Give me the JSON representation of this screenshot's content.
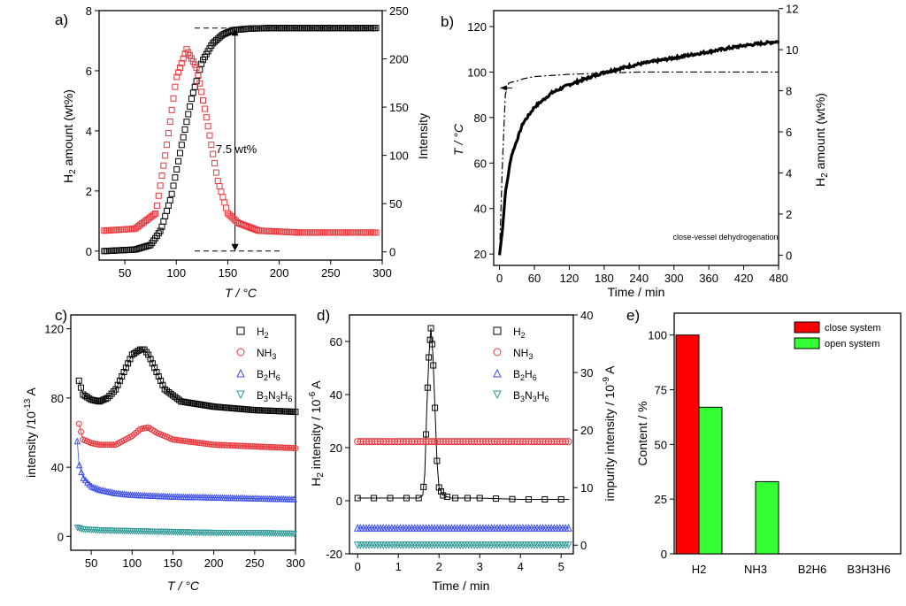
{
  "colors": {
    "black": "#000000",
    "red": "#e8383d",
    "blue": "#3b4ee8",
    "teal": "#2e9a97",
    "bar_red": "#ff0000",
    "bar_green": "#33ff33"
  },
  "chart_data": [
    {
      "panel": "a)",
      "type": "scatter",
      "xlabel": "T / °C",
      "ylabel_left": "H2 amount (wt%)",
      "ylabel_right": "Intensity",
      "xlim": [
        25,
        300
      ],
      "ylim_left": [
        -0.3,
        8
      ],
      "ylim_right": [
        -8.5,
        250
      ],
      "xticks": [
        "50",
        "100",
        "150",
        "200",
        "250",
        "300"
      ],
      "yticks_left": [
        "0",
        "2",
        "4",
        "6",
        "8"
      ],
      "yticks_right": [
        "0",
        "50",
        "100",
        "150",
        "200",
        "250"
      ],
      "annotation": "7.5 wt%",
      "series": [
        {
          "name": "H2 amount",
          "axis": "left",
          "color": "#000000",
          "marker": "square",
          "x": [
            30,
            60,
            75,
            85,
            95,
            105,
            115,
            125,
            135,
            145,
            155,
            170,
            190,
            220,
            260,
            295
          ],
          "y": [
            0,
            0.05,
            0.2,
            0.7,
            1.8,
            3.5,
            5.1,
            6.3,
            6.9,
            7.2,
            7.35,
            7.4,
            7.42,
            7.42,
            7.42,
            7.42
          ]
        },
        {
          "name": "Intensity",
          "axis": "right",
          "color": "#e8383d",
          "marker": "square",
          "x": [
            30,
            60,
            80,
            90,
            100,
            110,
            120,
            130,
            140,
            150,
            160,
            180,
            220,
            260,
            295
          ],
          "y": [
            22,
            24,
            40,
            105,
            180,
            210,
            190,
            135,
            75,
            40,
            30,
            22,
            20,
            20,
            20
          ]
        }
      ]
    },
    {
      "panel": "b)",
      "type": "line",
      "title": "close-vessel dehydrogenation",
      "xlabel": "Time / min",
      "ylabel_left": "T / °C",
      "ylabel_right": "H2 amount (wt%)",
      "xlim": [
        -10,
        480
      ],
      "ylim_left": [
        15,
        127
      ],
      "ylim_right": [
        -0.5,
        11.9
      ],
      "xticks": [
        "0",
        "60",
        "120",
        "180",
        "240",
        "300",
        "360",
        "420",
        "480"
      ],
      "yticks_left": [
        "20",
        "40",
        "60",
        "80",
        "100",
        "120"
      ],
      "yticks_right": [
        "0",
        "2",
        "4",
        "6",
        "8",
        "10",
        "12"
      ],
      "series": [
        {
          "name": "T",
          "axis": "left",
          "color": "#000000",
          "style": "dash-dot",
          "x": [
            0,
            5,
            10,
            15,
            20,
            30,
            40,
            60,
            120,
            240,
            480
          ],
          "y": [
            20,
            60,
            90,
            95,
            95.5,
            96,
            97,
            98,
            99,
            100,
            100
          ]
        },
        {
          "name": "H2 amount",
          "axis": "right",
          "color": "#000000",
          "style": "thick",
          "x": [
            0,
            5,
            10,
            20,
            40,
            60,
            90,
            120,
            180,
            240,
            300,
            360,
            420,
            480
          ],
          "y": [
            0,
            1.2,
            3,
            4.8,
            6.4,
            7.2,
            7.9,
            8.3,
            8.9,
            9.3,
            9.6,
            9.9,
            10.2,
            10.4
          ]
        }
      ]
    },
    {
      "panel": "c)",
      "type": "scatter",
      "xlabel": "T / °C",
      "ylabel": "intensity /10-13 A",
      "xlim": [
        25,
        300
      ],
      "ylim": [
        -8,
        128
      ],
      "xticks": [
        "50",
        "100",
        "150",
        "200",
        "250",
        "300"
      ],
      "yticks": [
        "0",
        "40",
        "80",
        "120"
      ],
      "legend": [
        "H2",
        "NH3",
        "B2H6",
        "B3N3H6"
      ],
      "series": [
        {
          "name": "H2",
          "color": "#000000",
          "marker": "square",
          "x": [
            35,
            40,
            50,
            60,
            70,
            80,
            90,
            100,
            110,
            115,
            120,
            130,
            140,
            160,
            200,
            250,
            300
          ],
          "y": [
            90,
            82,
            79,
            78,
            80,
            85,
            95,
            105,
            108,
            108,
            105,
            95,
            85,
            78,
            75,
            73,
            72
          ]
        },
        {
          "name": "NH3",
          "color": "#e8383d",
          "marker": "circle",
          "x": [
            35,
            40,
            50,
            60,
            80,
            100,
            110,
            120,
            130,
            150,
            200,
            250,
            300
          ],
          "y": [
            65,
            56,
            54,
            53,
            53,
            58,
            62,
            63,
            60,
            56,
            53,
            52,
            51
          ]
        },
        {
          "name": "B2H6",
          "color": "#3b4ee8",
          "marker": "triangle",
          "x": [
            33,
            35,
            40,
            50,
            60,
            80,
            100,
            150,
            200,
            250,
            300
          ],
          "y": [
            55,
            42,
            34,
            29,
            27,
            25,
            24,
            23,
            22.5,
            22,
            21.5
          ]
        },
        {
          "name": "B3N3H6",
          "color": "#2e9a97",
          "marker": "triangle-down",
          "x": [
            33,
            40,
            60,
            100,
            150,
            200,
            250,
            300
          ],
          "y": [
            5,
            4,
            3.5,
            3,
            2.5,
            2,
            2,
            1.5
          ]
        }
      ]
    },
    {
      "panel": "d)",
      "type": "scatter",
      "xlabel": "Time / min",
      "ylabel_left": "H2 intensity / 10-6 A",
      "ylabel_right": "impurity intensity / 10-9 A",
      "xlim": [
        -0.2,
        5.3
      ],
      "ylim_left": [
        -20,
        70
      ],
      "ylim_right": [
        -1.5,
        40
      ],
      "xticks": [
        "0",
        "1",
        "2",
        "3",
        "4",
        "5"
      ],
      "yticks_left": [
        "-20",
        "0",
        "20",
        "40",
        "60"
      ],
      "yticks_right": [
        "0",
        "10",
        "20",
        "30",
        "40"
      ],
      "legend": [
        "H2",
        "NH3",
        "B2H6",
        "B3N3H6"
      ],
      "series": [
        {
          "name": "H2",
          "axis": "left",
          "color": "#000000",
          "marker": "square",
          "x": [
            0,
            0.5,
            1,
            1.5,
            1.6,
            1.65,
            1.7,
            1.75,
            1.8,
            1.85,
            1.9,
            1.95,
            2,
            2.1,
            2.3,
            3,
            4,
            5.2
          ],
          "y": [
            1,
            1,
            1,
            1,
            2,
            10,
            35,
            54,
            65,
            55,
            35,
            15,
            5,
            2,
            1,
            1,
            0.5,
            0.5
          ]
        },
        {
          "name": "NH3",
          "axis": "right",
          "color": "#e8383d",
          "marker": "circle",
          "x": [
            0,
            1,
            2,
            3,
            4,
            5.2
          ],
          "y": [
            18,
            18,
            18,
            18,
            18,
            18
          ]
        },
        {
          "name": "B2H6",
          "axis": "right",
          "color": "#3b4ee8",
          "marker": "triangle",
          "x": [
            0,
            1,
            2,
            3,
            4,
            5.2
          ],
          "y": [
            3,
            3,
            3,
            3,
            3,
            3
          ]
        },
        {
          "name": "B3N3H6",
          "axis": "right",
          "color": "#2e9a97",
          "marker": "triangle-down",
          "x": [
            0,
            1,
            2,
            3,
            4,
            5.2
          ],
          "y": [
            0,
            0,
            0,
            0,
            0,
            0
          ]
        }
      ]
    },
    {
      "panel": "e)",
      "type": "bar",
      "ylabel": "Content / %",
      "ylim": [
        0,
        110
      ],
      "yticks": [
        "0",
        "25",
        "50",
        "75",
        "100"
      ],
      "categories": [
        "H2",
        "NH3",
        "B2H6",
        "B3H3H6"
      ],
      "series": [
        {
          "name": "close system",
          "color": "#ff0000",
          "values": [
            100,
            0,
            0,
            0
          ]
        },
        {
          "name": "open system",
          "color": "#33ff33",
          "values": [
            67,
            33,
            0,
            0
          ]
        }
      ]
    }
  ]
}
